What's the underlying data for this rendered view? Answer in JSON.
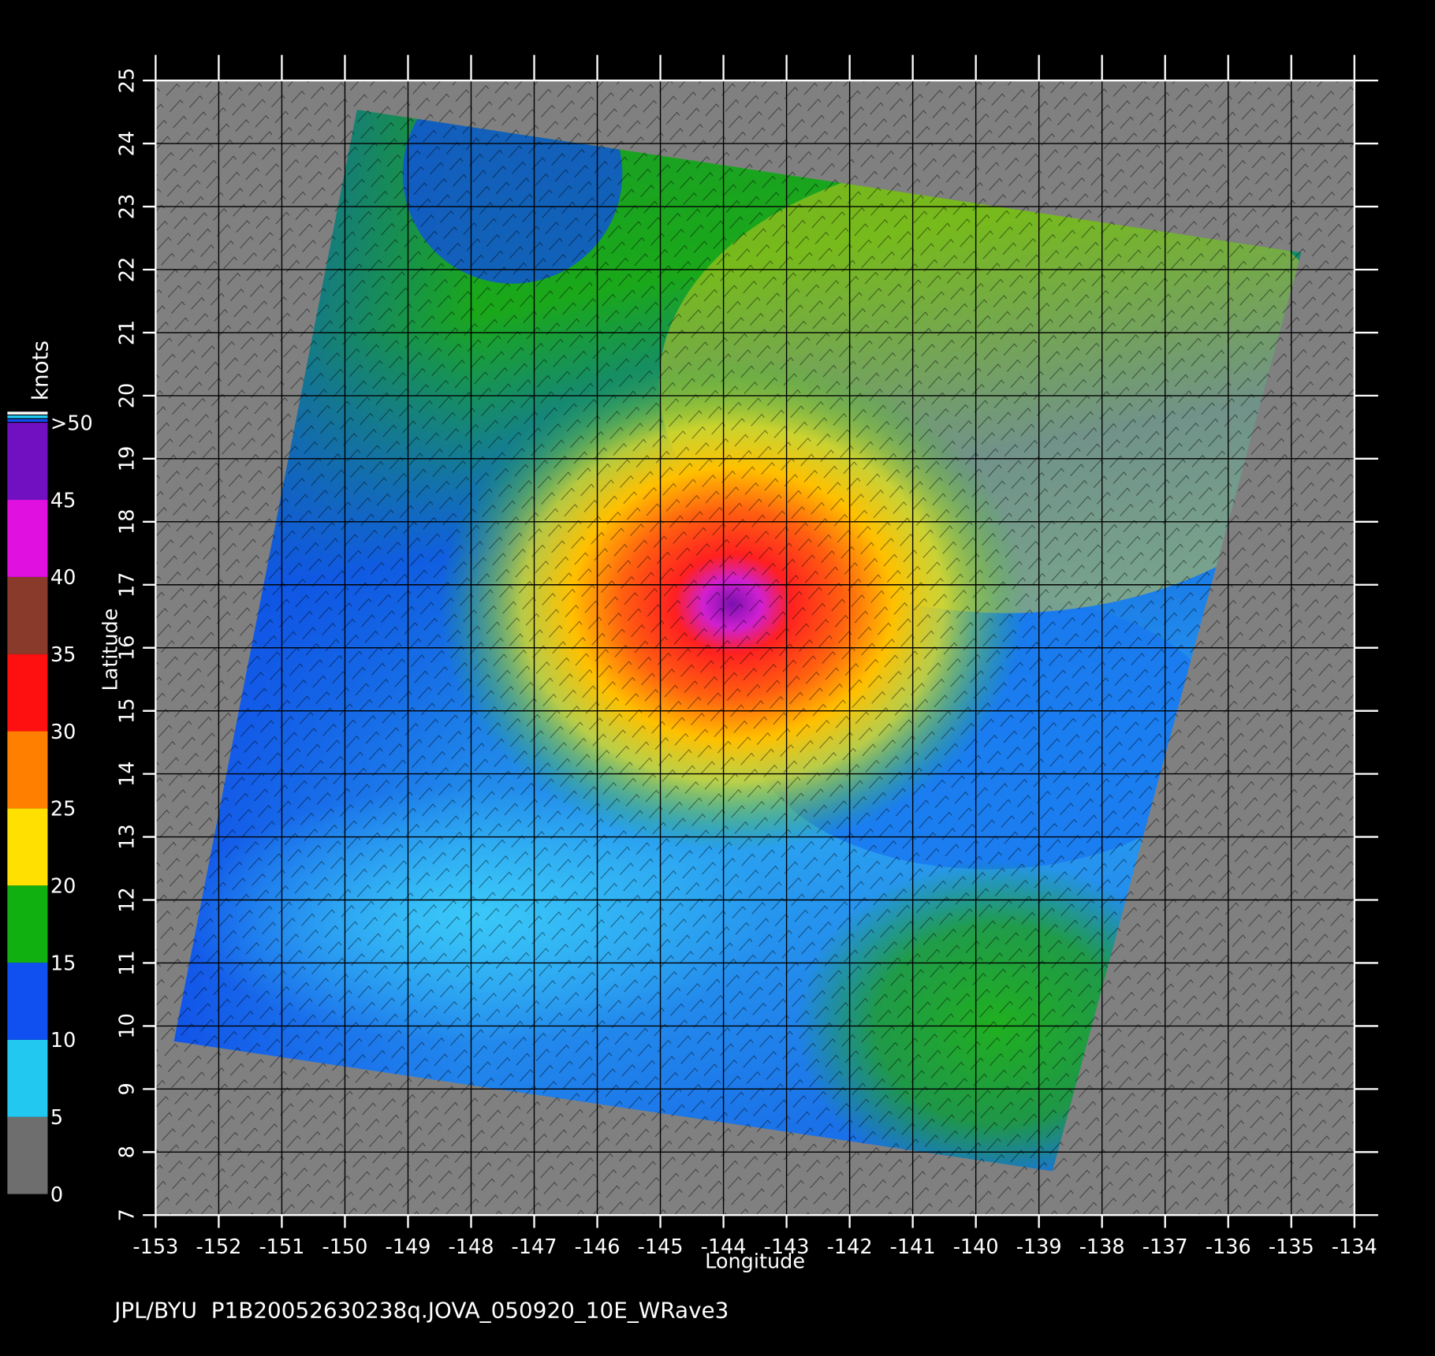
{
  "chart_data": {
    "type": "map",
    "xlabel": "Longitude",
    "ylabel": "Latitude",
    "xlim": [
      -153,
      -134
    ],
    "ylim": [
      7,
      25
    ],
    "xticks": [
      -153,
      -152,
      -151,
      -150,
      -149,
      -148,
      -147,
      -146,
      -145,
      -144,
      -143,
      -142,
      -141,
      -140,
      -139,
      -138,
      -137,
      -136,
      -135,
      -134
    ],
    "yticks": [
      7,
      8,
      9,
      10,
      11,
      12,
      13,
      14,
      15,
      16,
      17,
      18,
      19,
      20,
      21,
      22,
      23,
      24,
      25
    ],
    "grid": true,
    "colorbar": {
      "title": "knots",
      "clim": [
        0,
        50
      ],
      "ticks": [
        0,
        5,
        10,
        15,
        20,
        25,
        30,
        35,
        40,
        45,
        {
          "value": 50,
          "label": ">50"
        }
      ],
      "colors": [
        "#6e6e6e",
        "#22c8f0",
        "#1050f0",
        "#10b010",
        "#ffe000",
        "#ff8000",
        "#ff1010",
        "#8a3a2a",
        "#e010e0",
        "#7010c0"
      ]
    },
    "footer": "JPL/BYU  P1B20052630238q.JOVA_050920_10E_WRave3"
  }
}
